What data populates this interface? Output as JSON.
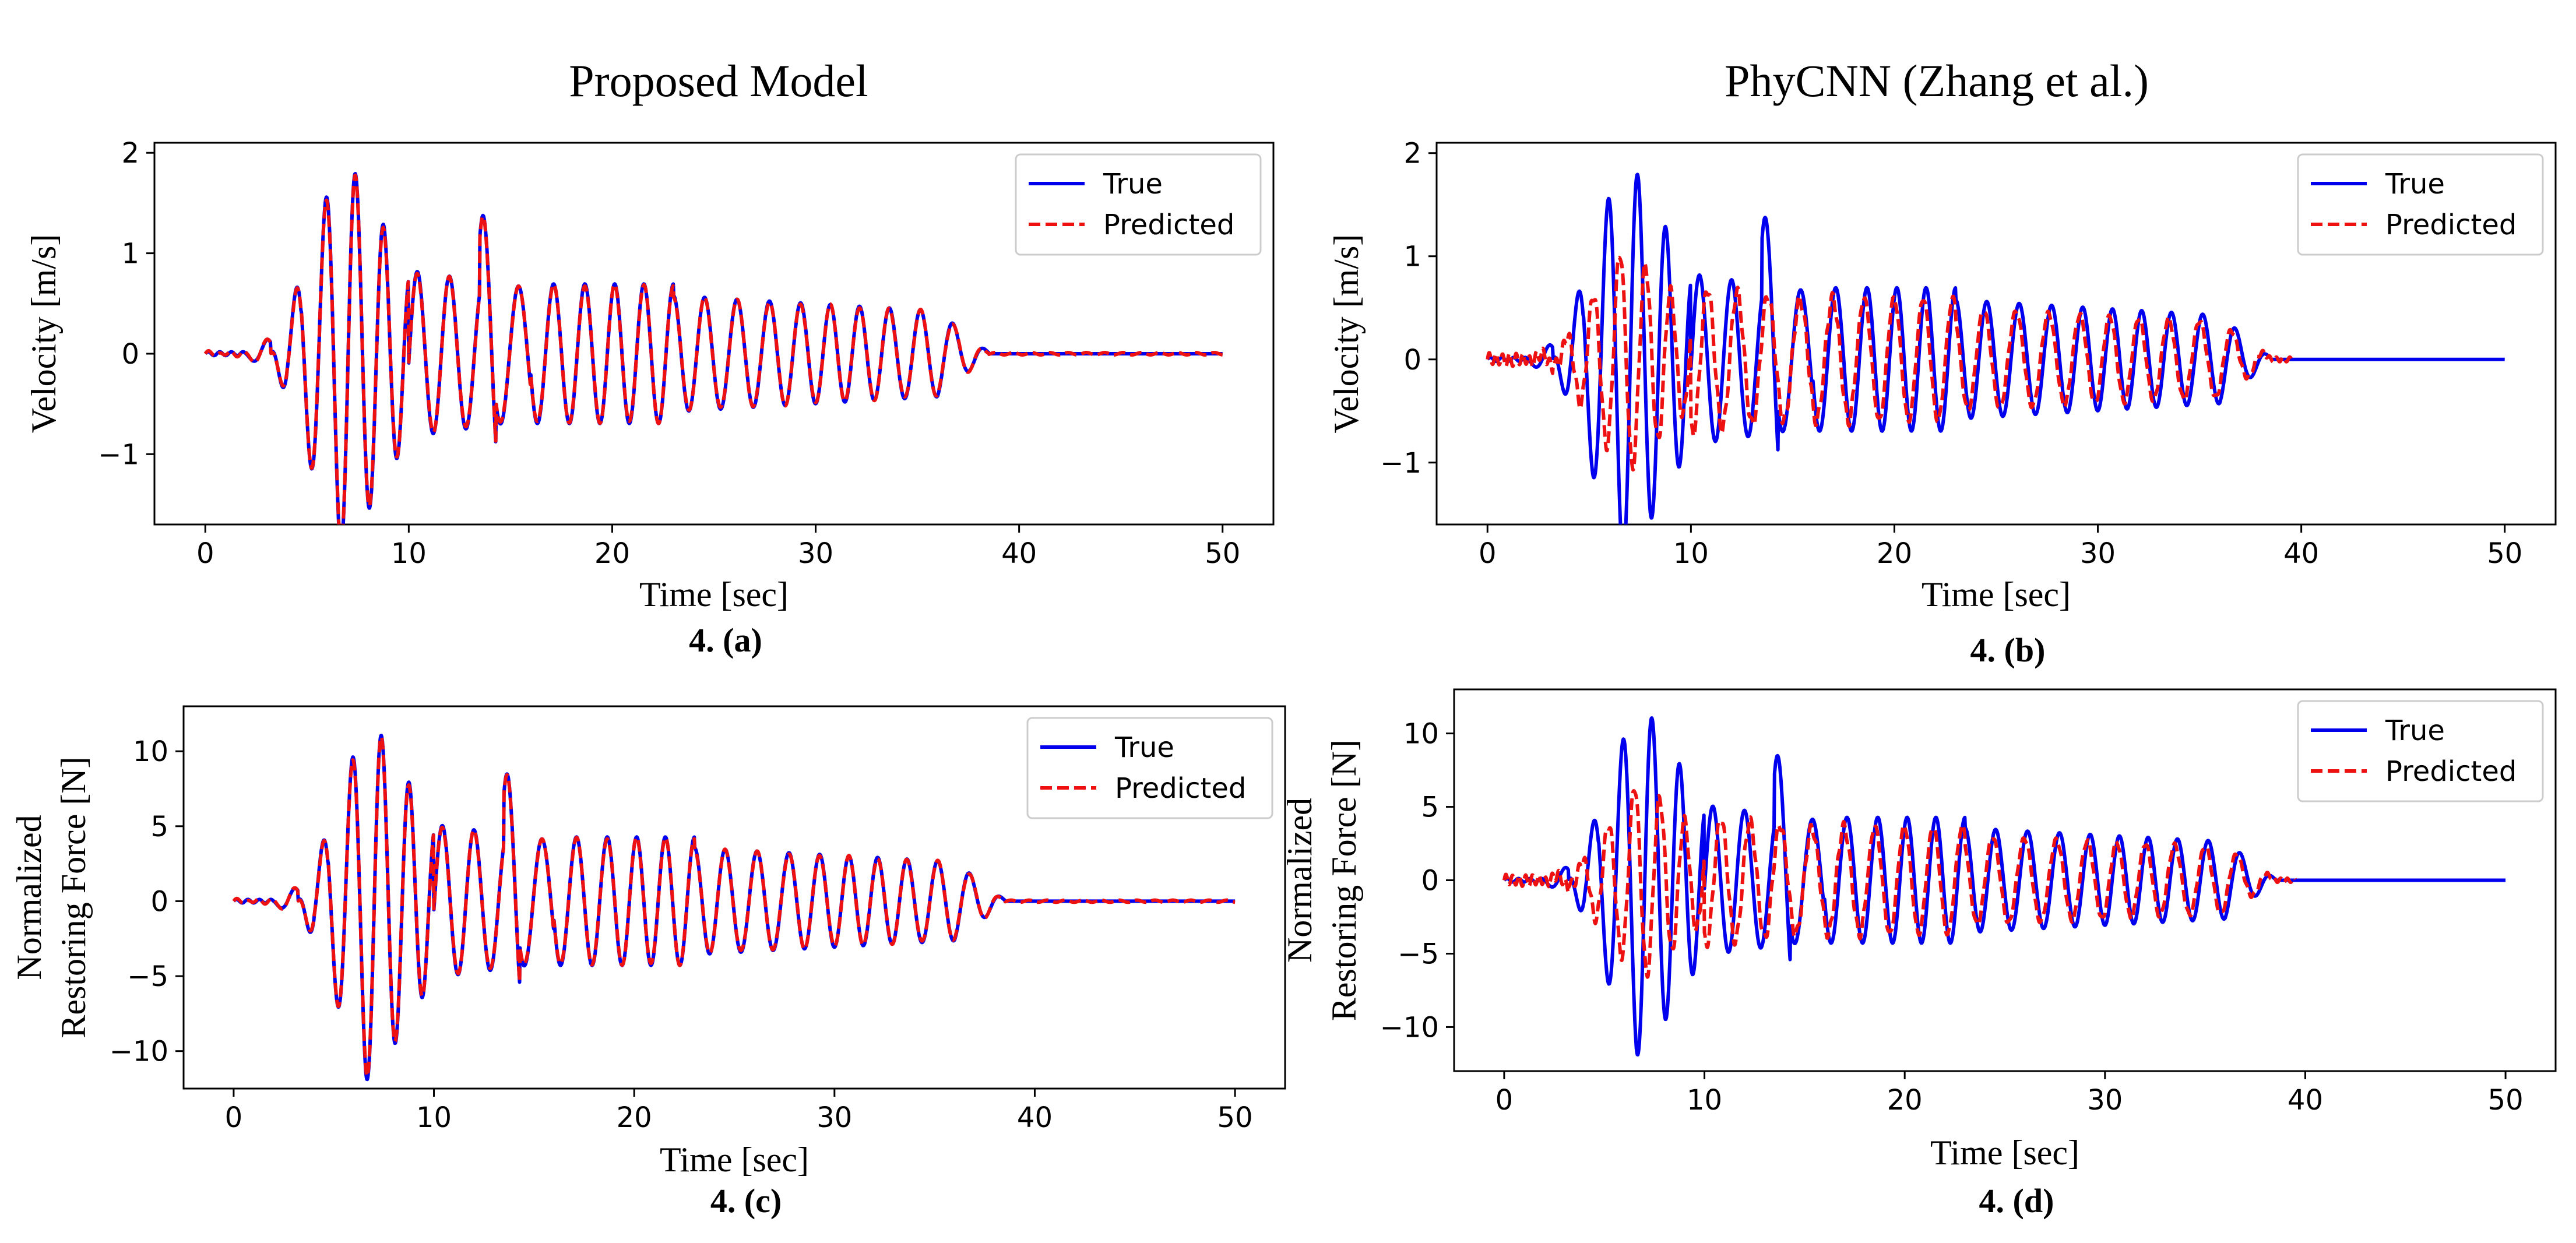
{
  "column_titles": [
    "Proposed Model",
    "PhyCNN (Zhang et al.)"
  ],
  "colors": {
    "true": "#0000ee",
    "predicted": "#ee1111"
  },
  "chart_data": [
    {
      "id": "a",
      "type": "line",
      "column_title": "Proposed Model",
      "panel_label": "4. (a)",
      "xlabel": "Time [sec]",
      "ylabel": [
        "Velocity [m/s]"
      ],
      "xlim": [
        -2.5,
        52.5
      ],
      "ylim": [
        -1.7,
        2.1
      ],
      "xticks": [
        0,
        10,
        20,
        30,
        40,
        50
      ],
      "yticks": [
        -1,
        0,
        1,
        2
      ],
      "legend": [
        "True",
        "Predicted"
      ],
      "legend_position": "top-right",
      "peak_scale": 1.93,
      "predicted_model": "close-match",
      "series": [
        {
          "name": "True",
          "style": "solid",
          "x_range": [
            0,
            50
          ]
        },
        {
          "name": "Predicted",
          "style": "dashed",
          "x_range": [
            0,
            50
          ]
        }
      ]
    },
    {
      "id": "b",
      "type": "line",
      "column_title": "PhyCNN (Zhang et al.)",
      "panel_label": "4. (b)",
      "xlabel": "Time [sec]",
      "ylabel": [
        "Velocity [m/s]"
      ],
      "xlim": [
        -2.5,
        52.5
      ],
      "ylim": [
        -1.6,
        2.1
      ],
      "xticks": [
        0,
        10,
        20,
        30,
        40,
        50
      ],
      "yticks": [
        -1,
        0,
        1,
        2
      ],
      "legend": [
        "True",
        "Predicted"
      ],
      "legend_position": "top-right",
      "peak_scale": 1.93,
      "predicted_model": "phase-shifted",
      "series": [
        {
          "name": "True",
          "style": "solid",
          "x_range": [
            0,
            50
          ]
        },
        {
          "name": "Predicted",
          "style": "dashed",
          "x_range": [
            0,
            39.5
          ]
        }
      ]
    },
    {
      "id": "c",
      "type": "line",
      "column_title": "Proposed Model",
      "panel_label": "4. (c)",
      "xlabel": "Time [sec]",
      "ylabel": [
        "Normalized",
        "Restoring Force [N]"
      ],
      "xlim": [
        -2.5,
        52.5
      ],
      "ylim": [
        -12.5,
        13
      ],
      "xticks": [
        0,
        10,
        20,
        30,
        40,
        50
      ],
      "yticks": [
        -10,
        -5,
        0,
        5,
        10
      ],
      "legend": [
        "True",
        "Predicted"
      ],
      "legend_position": "top-right",
      "peak_scale": 11.9,
      "predicted_model": "close-match",
      "series": [
        {
          "name": "True",
          "style": "solid",
          "x_range": [
            0,
            50
          ]
        },
        {
          "name": "Predicted",
          "style": "dashed",
          "x_range": [
            0,
            50
          ]
        }
      ]
    },
    {
      "id": "d",
      "type": "line",
      "column_title": "PhyCNN (Zhang et al.)",
      "panel_label": "4. (d)",
      "xlabel": "Time [sec]",
      "ylabel": [
        "Normalized",
        "Restoring Force [N]"
      ],
      "xlim": [
        -2.5,
        52.5
      ],
      "ylim": [
        -13,
        13
      ],
      "xticks": [
        0,
        10,
        20,
        30,
        40,
        50
      ],
      "yticks": [
        -10,
        -5,
        0,
        5,
        10
      ],
      "legend": [
        "True",
        "Predicted"
      ],
      "legend_position": "top-right",
      "peak_scale": 11.9,
      "predicted_model": "phase-shifted",
      "series": [
        {
          "name": "True",
          "style": "solid",
          "x_range": [
            0,
            50
          ]
        },
        {
          "name": "Predicted",
          "style": "dashed",
          "x_range": [
            0,
            39.5
          ]
        }
      ]
    }
  ]
}
